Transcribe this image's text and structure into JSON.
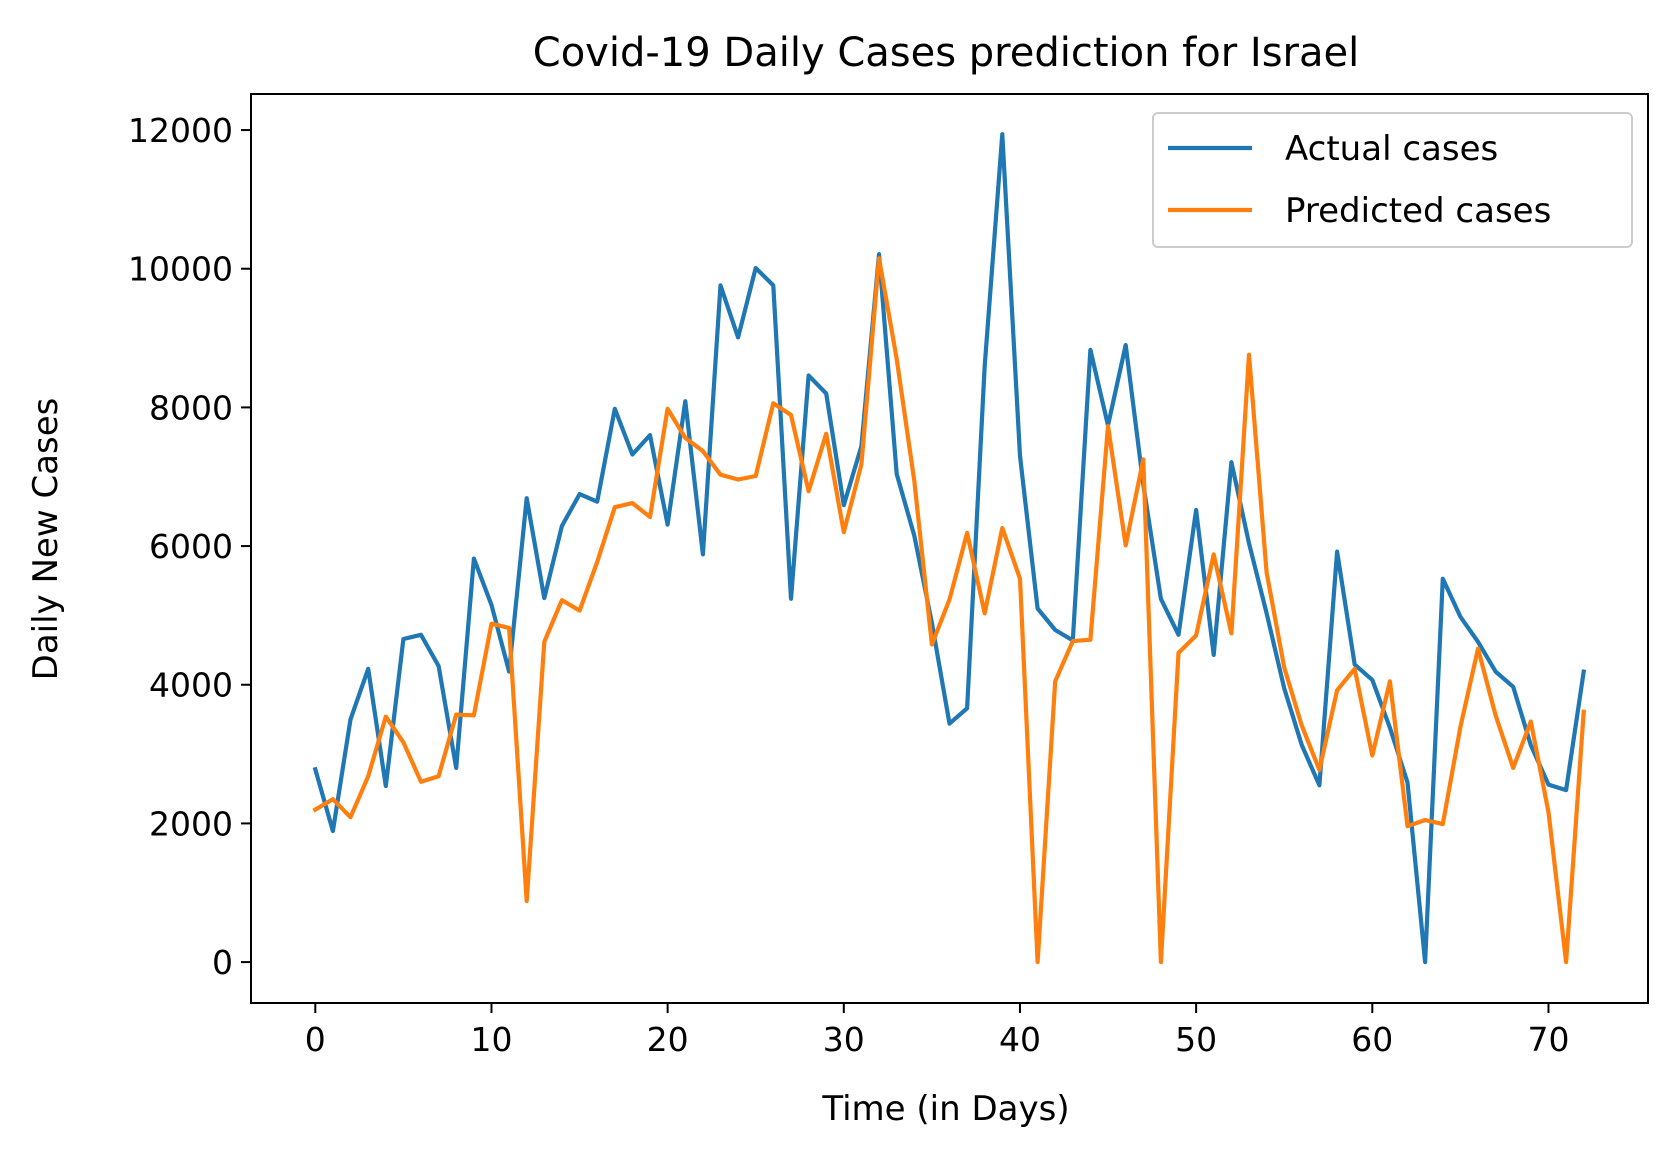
{
  "chart_data": {
    "type": "line",
    "title": "Covid-19 Daily Cases prediction for Israel",
    "xlabel": "Time (in Days)",
    "ylabel": "Daily New Cases",
    "xlim": [
      -3.65,
      75.65
    ],
    "ylim": [
      -590,
      12520
    ],
    "x_ticks": [
      0,
      10,
      20,
      30,
      40,
      50,
      60,
      70
    ],
    "y_ticks": [
      0,
      2000,
      4000,
      6000,
      8000,
      10000,
      12000
    ],
    "grid": false,
    "legend_position": "top-right",
    "series": [
      {
        "name": "Actual cases",
        "color": "#1f77b4",
        "values": [
          2780,
          1890,
          3500,
          4230,
          2540,
          4660,
          4720,
          4270,
          2800,
          5820,
          5150,
          4190,
          6690,
          5250,
          6290,
          6750,
          6640,
          7980,
          7320,
          7600,
          6310,
          8090,
          5880,
          9760,
          9010,
          10010,
          9760,
          5240,
          8460,
          8200,
          6590,
          7440,
          10210,
          7040,
          6150,
          4890,
          3440,
          3660,
          8600,
          11940,
          7300,
          5100,
          4790,
          4640,
          8830,
          7740,
          8900,
          6890,
          5240,
          4720,
          6520,
          4430,
          7210,
          6040,
          5030,
          3950,
          3130,
          2550,
          5920,
          4290,
          4070,
          3380,
          2590,
          0,
          5530,
          4980,
          4620,
          4190,
          3970,
          3130,
          2560,
          2480,
          4190
        ]
      },
      {
        "name": "Predicted cases",
        "color": "#ff7f0e",
        "values": [
          2200,
          2350,
          2090,
          2680,
          3540,
          3170,
          2600,
          2680,
          3570,
          3560,
          4880,
          4820,
          880,
          4620,
          5220,
          5070,
          5770,
          6560,
          6620,
          6420,
          7980,
          7560,
          7370,
          7030,
          6960,
          7010,
          8060,
          7890,
          6790,
          7620,
          6200,
          7180,
          10150,
          8700,
          6940,
          4580,
          5230,
          6190,
          5030,
          6260,
          5530,
          0,
          4050,
          4630,
          4650,
          7730,
          6010,
          7250,
          0,
          4460,
          4710,
          5880,
          4740,
          8760,
          5620,
          4250,
          3410,
          2770,
          3920,
          4230,
          2980,
          4050,
          1960,
          2050,
          1990,
          3390,
          4520,
          3560,
          2800,
          3470,
          2160,
          0,
          3610
        ]
      }
    ]
  }
}
